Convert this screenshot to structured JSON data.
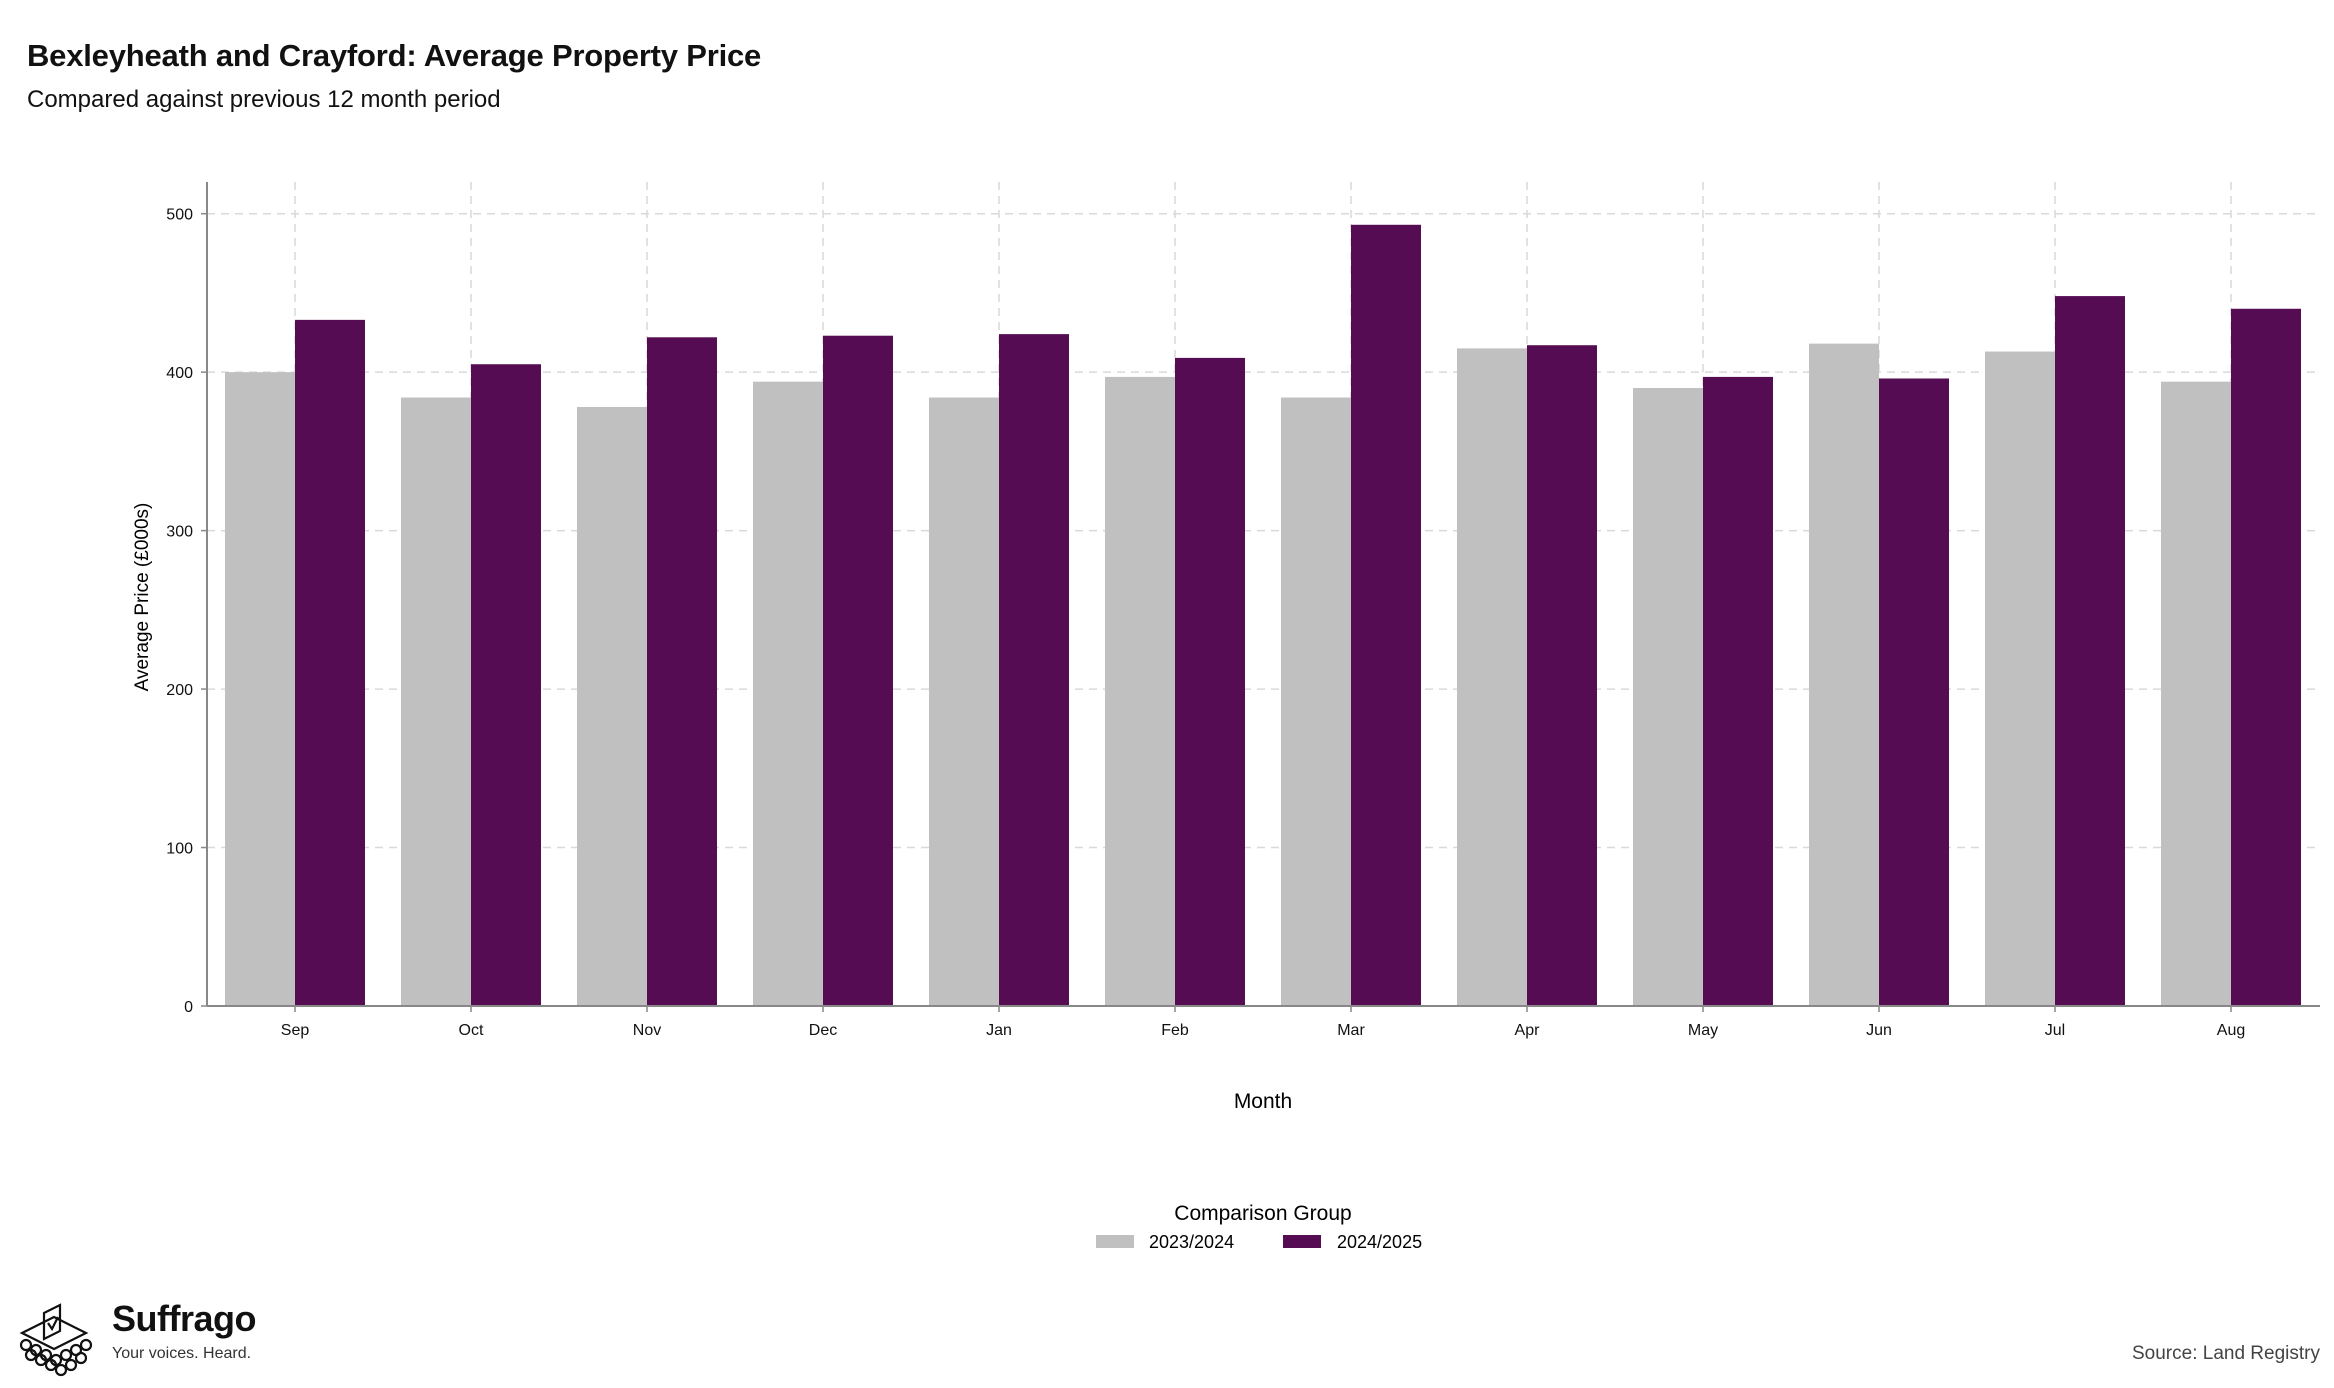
{
  "header": {
    "title": "Bexleyheath and Crayford: Average Property Price",
    "subtitle": "Compared against previous 12 month period"
  },
  "chart_data": {
    "type": "bar",
    "categories": [
      "Sep",
      "Oct",
      "Nov",
      "Dec",
      "Jan",
      "Feb",
      "Mar",
      "Apr",
      "May",
      "Jun",
      "Jul",
      "Aug"
    ],
    "series": [
      {
        "name": "2023/2024",
        "color": "#c0c0c0",
        "values": [
          400,
          384,
          378,
          394,
          384,
          397,
          384,
          415,
          390,
          418,
          413,
          394
        ]
      },
      {
        "name": "2024/2025",
        "color": "#560c52",
        "values": [
          433,
          405,
          422,
          423,
          424,
          409,
          493,
          417,
          397,
          396,
          448,
          440
        ]
      }
    ],
    "xlabel": "Month",
    "ylabel": "Average Price (£000s)",
    "ylim": [
      0,
      520
    ],
    "yticks": [
      0,
      100,
      200,
      300,
      400,
      500
    ],
    "grid": true,
    "legend": {
      "title": "Comparison Group",
      "position": "bottom-center"
    }
  },
  "footer": {
    "brand_name": "Suffrago",
    "brand_tagline": "Your voices. Heard.",
    "source": "Source: Land Registry"
  }
}
